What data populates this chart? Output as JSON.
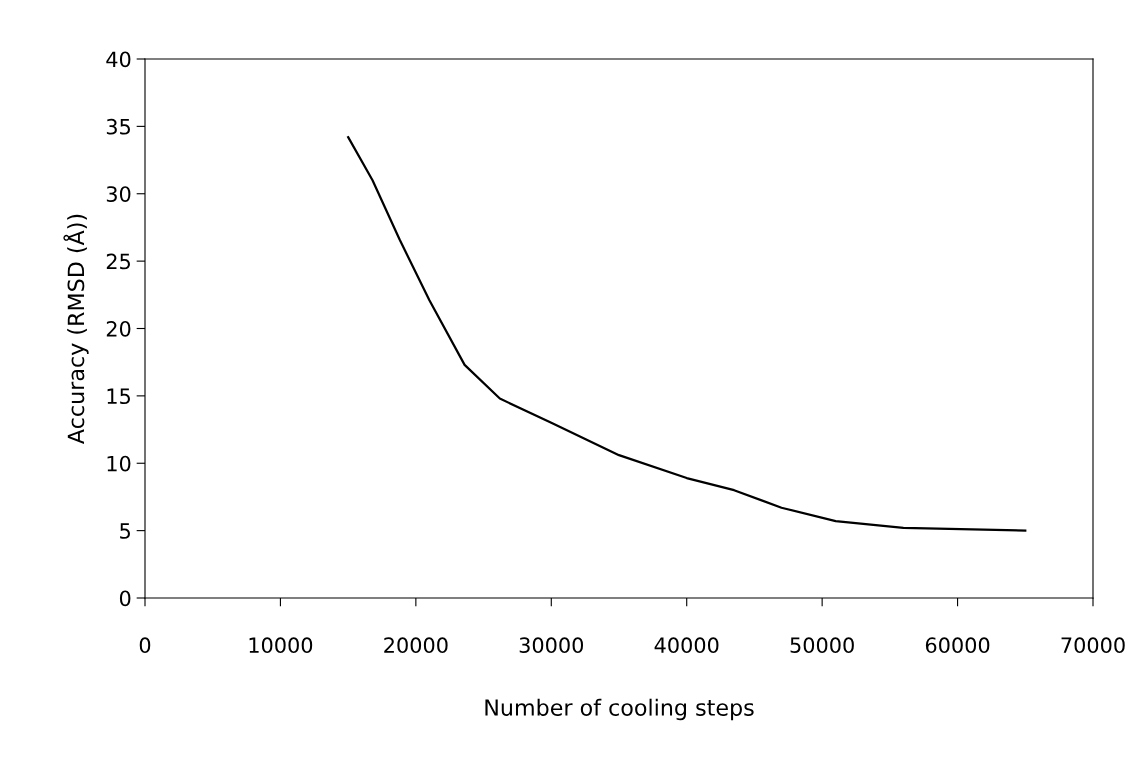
{
  "chart_data": {
    "type": "line",
    "xlabel": "Number of cooling steps",
    "ylabel": "Accuracy (RMSD (Å))",
    "series": [
      {
        "color": "#000000",
        "x": [
          15000,
          16800,
          18800,
          21000,
          23600,
          26200,
          30000,
          35000,
          40000,
          43500,
          47000,
          51000,
          56000,
          65000
        ],
        "values": [
          34.2,
          31.0,
          26.6,
          22.1,
          17.3,
          14.8,
          13.0,
          10.6,
          8.9,
          8.0,
          6.7,
          5.7,
          5.2,
          5.0
        ]
      }
    ],
    "xlim": [
      0,
      70000
    ],
    "xticks": [
      0,
      10000,
      20000,
      30000,
      40000,
      50000,
      60000,
      70000
    ],
    "ylim": [
      0,
      40
    ],
    "yticks": [
      0,
      5,
      10,
      15,
      20,
      25,
      30,
      35,
      40
    ],
    "grid": false,
    "legend": false,
    "marker": "none",
    "line_style": "solid"
  }
}
